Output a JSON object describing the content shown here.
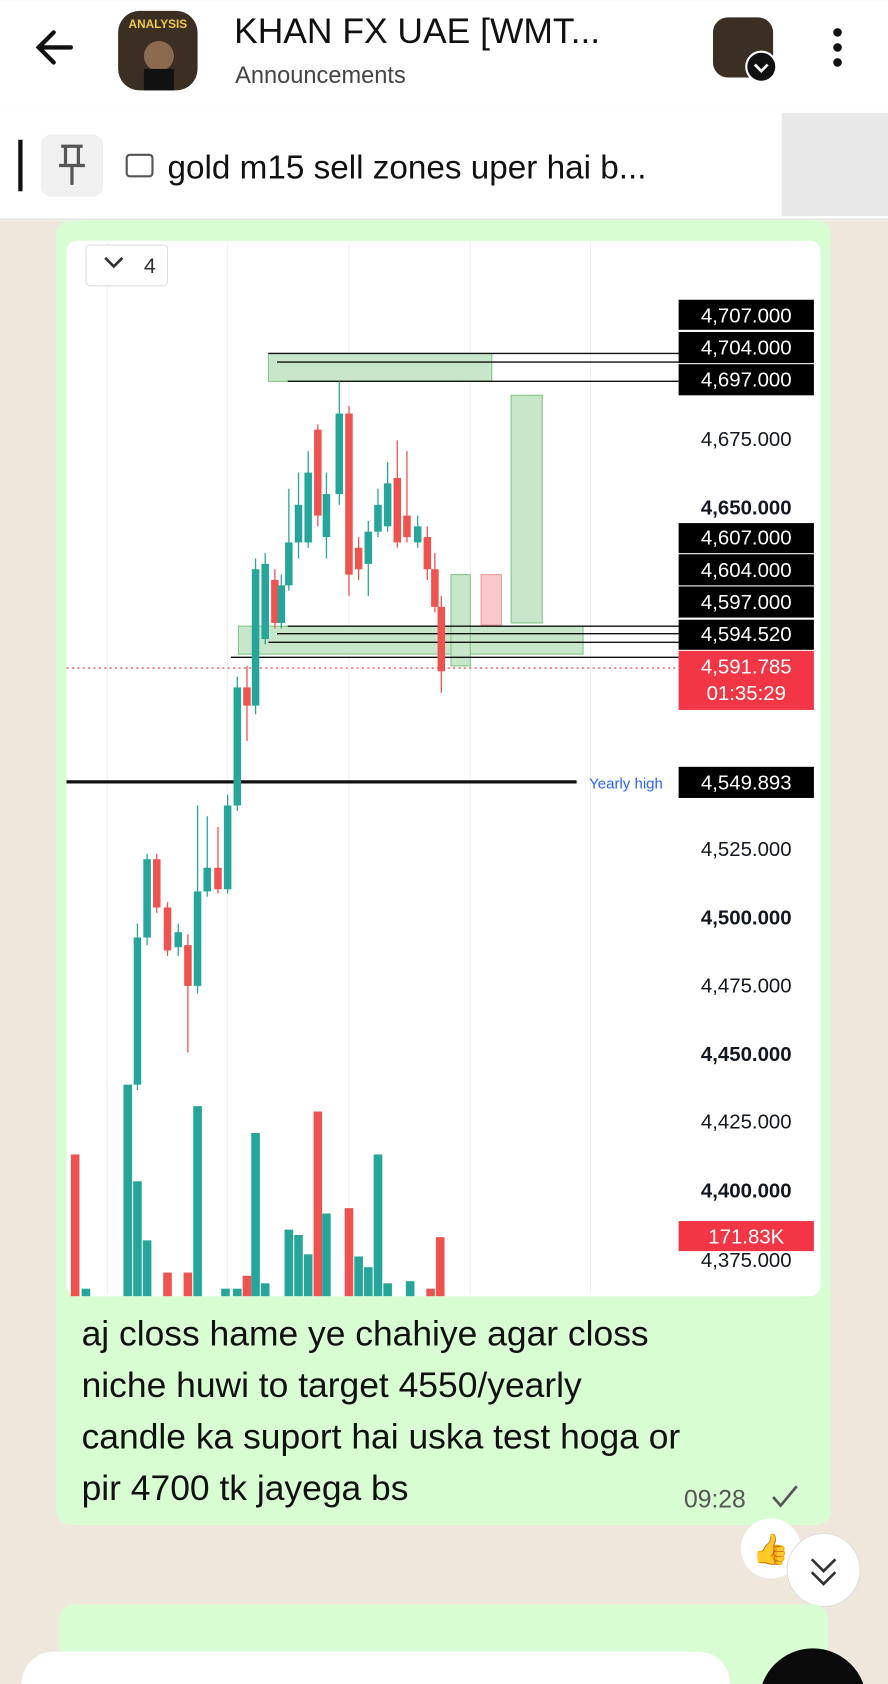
{
  "header": {
    "title": "KHAN FX UAE [WMT...",
    "subtitle": "Announcements",
    "avatar_text": "ANALYSIS"
  },
  "pinned": {
    "text": "gold m15 sell zones uper hai  b..."
  },
  "chart_image": {
    "dropdown": "4",
    "price_labels": [
      "4,707.000",
      "4,704.000",
      "4,697.000",
      "4,675.000",
      "4,650.000",
      "4,607.000",
      "4,604.000",
      "4,597.000",
      "4,594.520",
      "4,591.785",
      "01:35:29",
      "4,549.893",
      "4,525.000",
      "4,500.000",
      "4,475.000",
      "4,450.000",
      "4,425.000",
      "4,400.000",
      "171.83K",
      "4,375.000"
    ],
    "yearly_label": "Yearly high"
  },
  "message": {
    "lines": [
      "aj closs hame ye chahiye agar closs",
      "niche huwi to target 4550/yearly",
      "candle ka suport hai uska test hoga or",
      "pir 4700 tk jayega bs"
    ],
    "time": "09:28"
  }
}
